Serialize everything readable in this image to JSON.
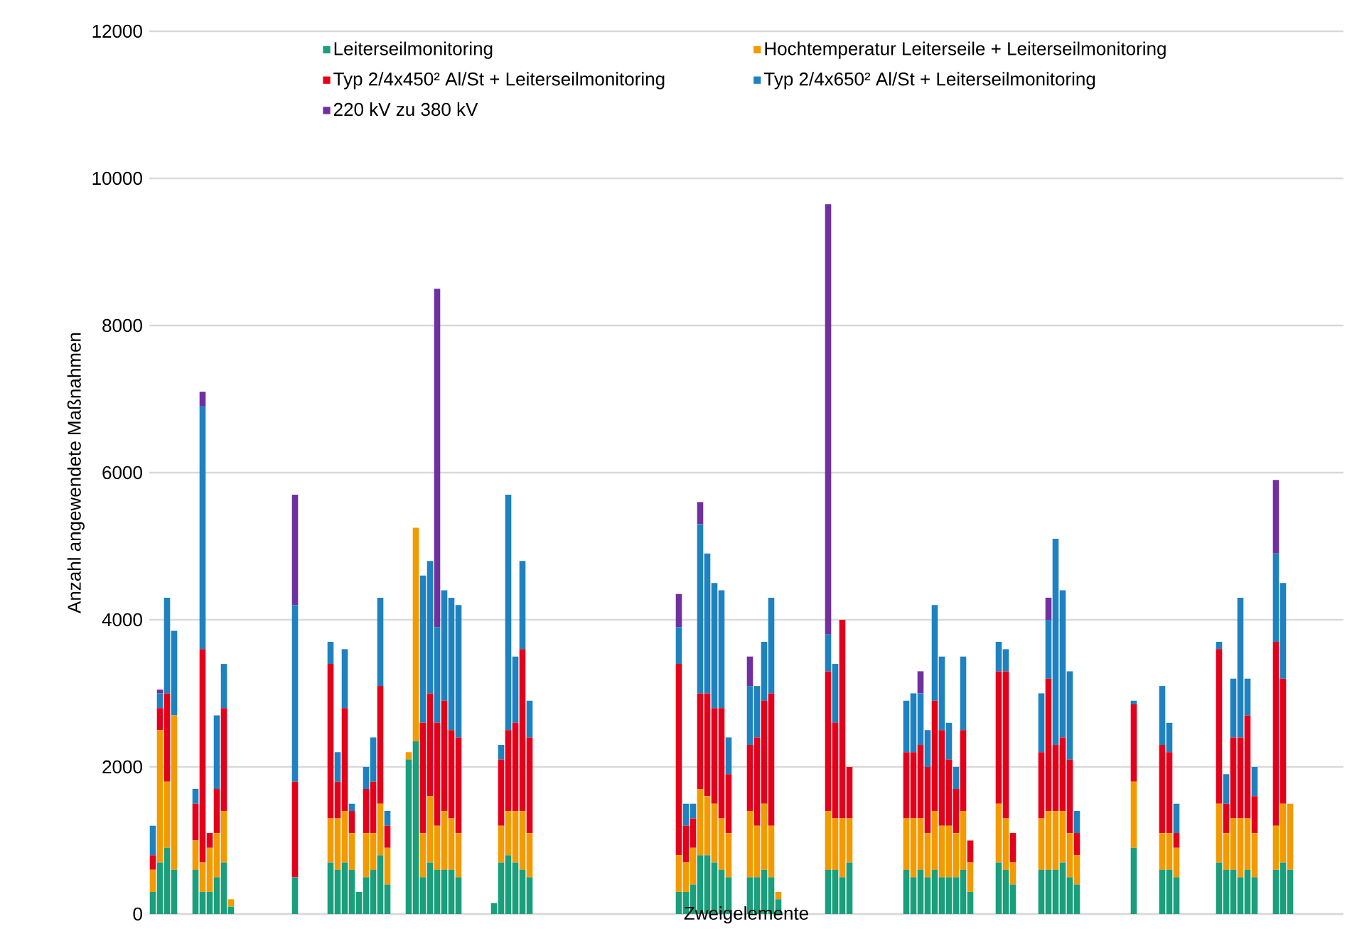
{
  "chart_data": {
    "type": "bar",
    "stacked": true,
    "xlabel": "Zweigelemente",
    "ylabel": "Anzahl angewendete Maßnahmen",
    "categories": [
      null,
      null,
      null,
      null,
      null,
      null,
      null,
      null,
      null,
      null,
      null,
      null,
      null,
      null,
      null,
      null,
      null,
      null,
      null,
      null,
      null,
      null,
      null,
      null,
      null,
      null,
      null,
      null,
      null,
      null,
      null,
      null,
      null,
      null,
      null,
      null,
      null,
      null,
      null,
      null,
      null,
      null,
      null,
      null,
      null,
      null,
      null,
      null,
      null,
      null,
      null,
      null,
      null,
      null,
      null,
      null,
      null,
      null,
      null,
      null,
      null,
      null,
      null,
      null,
      null,
      null,
      null,
      null,
      null,
      null,
      null,
      null,
      null,
      null,
      null,
      null,
      null,
      null,
      null,
      null,
      null,
      null,
      null,
      null,
      null,
      null,
      null,
      null,
      null,
      null,
      null,
      null,
      null,
      null,
      null,
      null,
      null,
      null,
      null,
      null,
      null,
      null,
      null,
      null,
      null,
      null,
      null,
      null,
      null,
      null,
      null,
      null,
      null,
      null,
      null,
      null,
      null,
      null,
      null,
      null,
      null,
      null,
      null,
      null,
      null,
      null,
      null,
      null,
      null,
      null,
      null,
      null,
      null,
      null,
      null,
      null,
      null,
      null,
      null,
      null,
      null,
      null,
      null,
      null,
      null,
      null,
      null,
      null,
      null,
      null,
      null,
      null,
      null,
      null,
      null,
      null,
      null,
      null,
      null,
      null,
      null,
      null,
      null,
      null,
      null,
      null,
      null,
      null
    ],
    "ylim": [
      0,
      12000
    ],
    "yticks": [
      0,
      2000,
      4000,
      6000,
      8000,
      10000,
      12000
    ],
    "grid": "y",
    "legend": "top",
    "series": [
      {
        "name": "Leiterseilmonitoring",
        "color": "#1a9e7c",
        "values": [
          300,
          700,
          900,
          600,
          null,
          null,
          600,
          300,
          300,
          500,
          700,
          100,
          null,
          null,
          null,
          null,
          null,
          null,
          null,
          null,
          500,
          null,
          null,
          null,
          null,
          700,
          600,
          700,
          600,
          300,
          500,
          600,
          800,
          400,
          null,
          null,
          2100,
          2350,
          500,
          700,
          600,
          600,
          600,
          500,
          null,
          null,
          null,
          null,
          150,
          700,
          800,
          700,
          600,
          500,
          null,
          null,
          null,
          null,
          null,
          null,
          null,
          null,
          null,
          null,
          null,
          null,
          null,
          null,
          null,
          null,
          null,
          null,
          null,
          null,
          300,
          300,
          400,
          800,
          800,
          700,
          600,
          500,
          null,
          null,
          500,
          500,
          600,
          500,
          200,
          null,
          null,
          null,
          null,
          null,
          null,
          600,
          600,
          500,
          700,
          null,
          null,
          null,
          null,
          null,
          null,
          null,
          600,
          500,
          600,
          500,
          600,
          500,
          500,
          500,
          600,
          300,
          null,
          null,
          null,
          700,
          600,
          400,
          null,
          null,
          null,
          600,
          600,
          600,
          700,
          500,
          400,
          null,
          null,
          null,
          null,
          null,
          null,
          null,
          900,
          null,
          null,
          null,
          600,
          600,
          500,
          null,
          null,
          null,
          null,
          null,
          700,
          600,
          600,
          500,
          600,
          500,
          null,
          null,
          600,
          700,
          600,
          null,
          null,
          null,
          null,
          null,
          null,
          null
        ]
      },
      {
        "name": "Hochtemperatur Leiterseile + Leiterseilmonitoring",
        "color": "#f29a00",
        "values": [
          300,
          1800,
          900,
          2100,
          null,
          null,
          400,
          400,
          600,
          600,
          700,
          100,
          null,
          null,
          null,
          null,
          null,
          null,
          null,
          null,
          0,
          null,
          null,
          null,
          null,
          600,
          700,
          700,
          500,
          0,
          600,
          500,
          700,
          500,
          null,
          null,
          100,
          2900,
          600,
          900,
          600,
          800,
          700,
          600,
          null,
          null,
          null,
          null,
          0,
          500,
          600,
          700,
          800,
          600,
          null,
          null,
          null,
          null,
          null,
          null,
          null,
          null,
          null,
          null,
          null,
          null,
          null,
          null,
          null,
          null,
          null,
          null,
          null,
          null,
          500,
          400,
          500,
          900,
          800,
          800,
          700,
          600,
          null,
          null,
          900,
          700,
          900,
          700,
          100,
          null,
          null,
          null,
          null,
          null,
          null,
          800,
          700,
          800,
          600,
          null,
          null,
          null,
          null,
          null,
          null,
          null,
          700,
          800,
          700,
          600,
          800,
          700,
          700,
          600,
          800,
          400,
          null,
          null,
          null,
          800,
          700,
          300,
          null,
          null,
          null,
          700,
          800,
          800,
          700,
          600,
          400,
          null,
          null,
          null,
          null,
          null,
          null,
          null,
          900,
          null,
          null,
          null,
          500,
          500,
          400,
          null,
          null,
          null,
          null,
          null,
          800,
          500,
          700,
          800,
          700,
          600,
          null,
          null,
          600,
          800,
          900,
          null,
          null,
          null,
          null,
          null,
          null,
          null
        ]
      },
      {
        "name": "Typ 2/4x450² Al/St + Leiterseilmonitoring",
        "color": "#e3001b",
        "values": [
          200,
          300,
          1200,
          0,
          null,
          null,
          500,
          2900,
          200,
          600,
          1400,
          0,
          null,
          null,
          null,
          null,
          null,
          null,
          null,
          null,
          1300,
          null,
          null,
          null,
          null,
          2100,
          500,
          1400,
          300,
          0,
          600,
          700,
          1600,
          300,
          null,
          null,
          0,
          0,
          1500,
          1400,
          1400,
          1500,
          1200,
          1300,
          null,
          null,
          null,
          null,
          0,
          900,
          1100,
          1200,
          2200,
          1300,
          null,
          null,
          null,
          null,
          null,
          null,
          null,
          null,
          null,
          null,
          null,
          null,
          null,
          null,
          null,
          null,
          null,
          null,
          null,
          null,
          2600,
          500,
          400,
          1300,
          1400,
          1300,
          1500,
          800,
          null,
          null,
          900,
          1200,
          1400,
          1800,
          0,
          null,
          null,
          null,
          null,
          null,
          null,
          1900,
          1300,
          2700,
          700,
          null,
          null,
          null,
          null,
          null,
          null,
          null,
          900,
          900,
          1000,
          900,
          1500,
          1300,
          900,
          600,
          1100,
          300,
          null,
          null,
          null,
          1800,
          2000,
          400,
          null,
          null,
          null,
          900,
          1800,
          900,
          1000,
          1000,
          300,
          null,
          null,
          null,
          null,
          null,
          null,
          null,
          1050,
          null,
          null,
          null,
          1200,
          1100,
          200,
          null,
          null,
          null,
          null,
          null,
          2100,
          400,
          1100,
          1100,
          1400,
          500,
          null,
          null,
          2500,
          1700,
          0,
          null,
          null,
          null,
          null,
          null,
          null,
          null
        ]
      },
      {
        "name": "Typ 2/4x650² Al/St + Leiterseilmonitoring",
        "color": "#1f82c0",
        "values": [
          400,
          200,
          1300,
          1150,
          null,
          null,
          200,
          3300,
          0,
          1000,
          600,
          0,
          null,
          null,
          null,
          null,
          null,
          null,
          null,
          null,
          2400,
          null,
          null,
          null,
          null,
          300,
          400,
          800,
          100,
          0,
          300,
          600,
          1200,
          200,
          null,
          null,
          0,
          0,
          2000,
          1800,
          1300,
          1500,
          1800,
          1800,
          null,
          null,
          null,
          null,
          0,
          200,
          3200,
          900,
          1200,
          500,
          null,
          null,
          null,
          null,
          null,
          null,
          null,
          null,
          null,
          null,
          null,
          null,
          null,
          null,
          null,
          null,
          null,
          null,
          null,
          null,
          500,
          300,
          200,
          2300,
          1900,
          1700,
          1600,
          500,
          null,
          null,
          800,
          700,
          800,
          1300,
          0,
          null,
          null,
          null,
          null,
          null,
          null,
          500,
          800,
          0,
          0,
          null,
          null,
          null,
          null,
          null,
          null,
          null,
          700,
          800,
          700,
          500,
          1300,
          1000,
          500,
          300,
          1000,
          0,
          null,
          null,
          null,
          400,
          300,
          0,
          null,
          null,
          null,
          800,
          800,
          2800,
          2000,
          1200,
          300,
          null,
          null,
          null,
          null,
          null,
          null,
          null,
          50,
          null,
          null,
          null,
          800,
          400,
          400,
          null,
          null,
          null,
          null,
          null,
          100,
          400,
          800,
          1900,
          500,
          400,
          null,
          null,
          1200,
          1300,
          0,
          null,
          null,
          null,
          null,
          null,
          null,
          null
        ]
      },
      {
        "name": "220 kV zu 380 kV",
        "color": "#7030a0",
        "values": [
          0,
          50,
          0,
          0,
          null,
          null,
          0,
          200,
          0,
          0,
          0,
          0,
          null,
          null,
          null,
          null,
          null,
          null,
          null,
          null,
          1500,
          null,
          null,
          null,
          null,
          0,
          0,
          0,
          0,
          0,
          0,
          0,
          0,
          0,
          null,
          null,
          0,
          0,
          0,
          0,
          4600,
          0,
          0,
          0,
          null,
          null,
          null,
          null,
          0,
          0,
          0,
          0,
          0,
          0,
          null,
          null,
          null,
          null,
          null,
          null,
          null,
          null,
          null,
          null,
          null,
          null,
          null,
          null,
          null,
          null,
          null,
          null,
          null,
          null,
          450,
          0,
          0,
          300,
          0,
          0,
          0,
          0,
          null,
          null,
          400,
          0,
          0,
          0,
          0,
          null,
          null,
          null,
          null,
          null,
          null,
          5850,
          0,
          0,
          0,
          null,
          null,
          null,
          null,
          null,
          null,
          null,
          0,
          0,
          300,
          0,
          0,
          0,
          0,
          0,
          0,
          0,
          null,
          null,
          null,
          0,
          0,
          0,
          null,
          null,
          null,
          0,
          300,
          0,
          0,
          0,
          0,
          null,
          null,
          null,
          null,
          null,
          null,
          null,
          0,
          null,
          null,
          null,
          0,
          0,
          0,
          null,
          null,
          null,
          null,
          null,
          0,
          0,
          0,
          0,
          0,
          0,
          null,
          null,
          1000,
          0,
          0,
          null,
          null,
          null,
          null,
          null,
          null,
          null
        ]
      }
    ]
  }
}
